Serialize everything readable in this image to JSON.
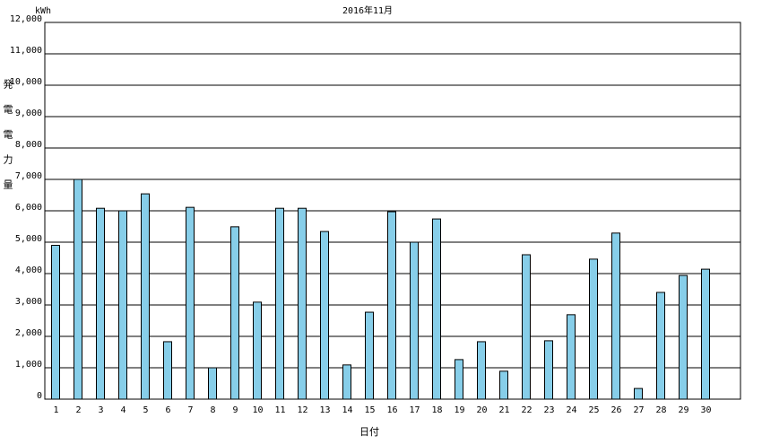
{
  "chart_data": {
    "type": "bar",
    "title": "2016年11月",
    "unit": "kWh",
    "y_label": "発電電力量",
    "x_label": "日付",
    "categories": [
      "1",
      "2",
      "3",
      "4",
      "5",
      "6",
      "7",
      "8",
      "9",
      "10",
      "11",
      "12",
      "13",
      "14",
      "15",
      "16",
      "17",
      "18",
      "19",
      "20",
      "21",
      "22",
      "23",
      "24",
      "25",
      "26",
      "27",
      "28",
      "29",
      "30"
    ],
    "values": [
      4900,
      7000,
      6080,
      6000,
      6540,
      1830,
      6110,
      1000,
      5490,
      3090,
      6080,
      6080,
      5340,
      1090,
      2770,
      5970,
      5000,
      5740,
      1260,
      1830,
      890,
      4600,
      1860,
      2690,
      4460,
      5290,
      340,
      3400,
      3940,
      4140
    ],
    "color": "#87cee9",
    "ylim": [
      0,
      12000
    ],
    "yticks": [
      0,
      {
        "value": 1000,
        "label": "1,000"
      },
      {
        "value": 2000,
        "label": "2,000"
      },
      {
        "value": 3000,
        "label": "3,000"
      },
      {
        "value": 4000,
        "label": "4,000"
      },
      {
        "value": 5000,
        "label": "5,000"
      },
      {
        "value": 6000,
        "label": "6,000"
      },
      {
        "value": 7000,
        "label": "7,000"
      },
      {
        "value": 8000,
        "label": "8,000"
      },
      {
        "value": 9000,
        "label": "9,000"
      },
      {
        "value": 10000,
        "label": "10,000"
      },
      {
        "value": 11000,
        "label": "11,000"
      },
      {
        "value": 12000,
        "label": "12,000"
      }
    ],
    "grid": true
  }
}
